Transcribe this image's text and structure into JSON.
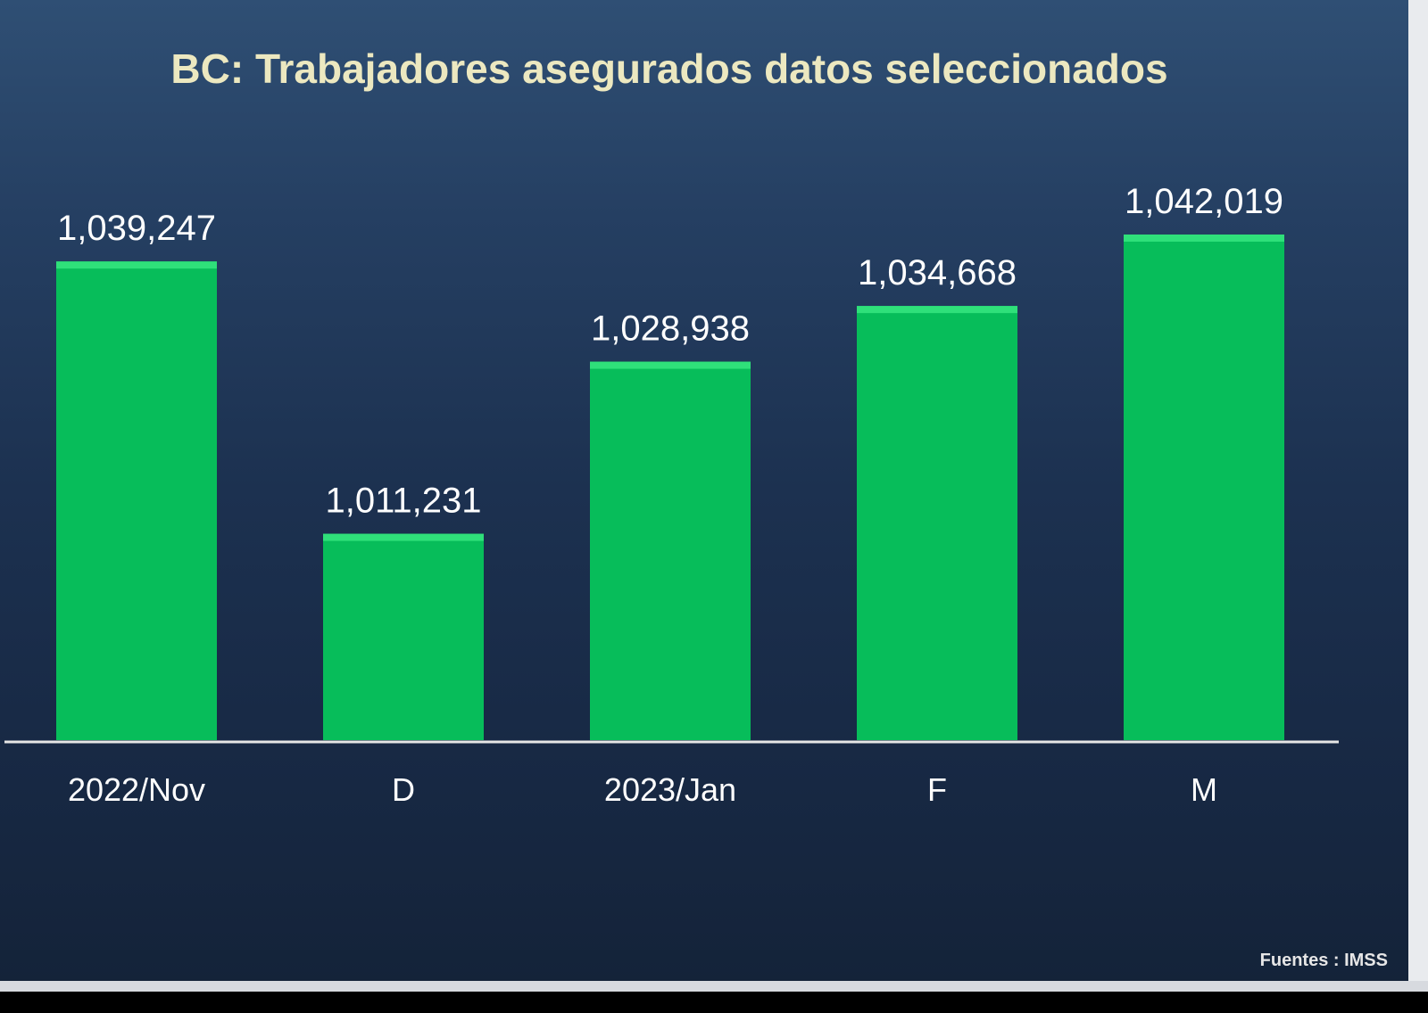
{
  "chart_data": {
    "type": "bar",
    "title": "BC: Trabajadores asegurados datos seleccionados",
    "categories": [
      "2022/Nov",
      "D",
      "2023/Jan",
      "F",
      "M"
    ],
    "values": [
      1039247,
      1011231,
      1028938,
      1034668,
      1042019
    ],
    "value_labels": [
      "1,039,247",
      "1,011,231",
      "1,028,938",
      "1,034,668",
      "1,042,019"
    ],
    "xlabel": "",
    "ylabel": "",
    "ylim": [
      990000,
      1050000
    ],
    "grid": false,
    "legend": "none",
    "source": "Fuentes : IMSS"
  },
  "colors": {
    "bar": "#07bd5a",
    "bar_highlight": "#2fe07a",
    "title": "#ece8c0",
    "labels": "#ffffff",
    "baseline": "#e6e6e6",
    "source": "#e6e6e6"
  }
}
